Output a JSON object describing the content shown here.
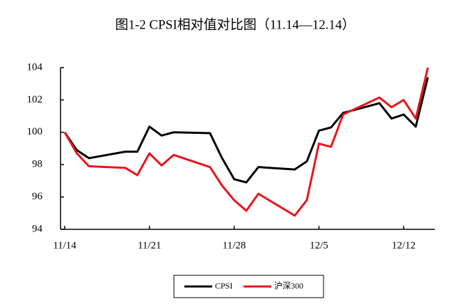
{
  "chart_data": {
    "type": "line",
    "title": "图1-2 CPSI相对值对比图（11.14—12.14）",
    "x": [
      "11/14",
      "11/15",
      "11/16",
      "11/19",
      "11/20",
      "11/21",
      "11/22",
      "11/23",
      "11/26",
      "11/27",
      "11/28",
      "11/29",
      "11/30",
      "12/3",
      "12/4",
      "12/5",
      "12/6",
      "12/7",
      "12/10",
      "12/11",
      "12/12",
      "12/13",
      "12/14"
    ],
    "series": [
      {
        "name": "CPSI",
        "color": "#000000",
        "values": [
          100,
          98.9,
          98.4,
          98.8,
          98.8,
          100.35,
          99.8,
          100.0,
          99.95,
          98.4,
          97.1,
          96.9,
          97.85,
          97.7,
          98.2,
          100.1,
          100.3,
          101.2,
          101.8,
          100.85,
          101.1,
          100.35,
          103.4
        ]
      },
      {
        "name": "沪深300",
        "color": "#e8141b",
        "values": [
          100,
          98.7,
          97.9,
          97.8,
          97.35,
          98.7,
          97.95,
          98.6,
          97.85,
          96.7,
          95.8,
          95.15,
          96.2,
          94.85,
          95.8,
          99.3,
          99.1,
          101.1,
          102.15,
          101.55,
          102.0,
          100.85,
          104.0
        ]
      }
    ],
    "xlim": [
      "11/14",
      "12/14"
    ],
    "xticks": [
      "11/14",
      "11/21",
      "11/28",
      "12/5",
      "12/12"
    ],
    "ylim": [
      94,
      104
    ],
    "yticks": [
      94,
      96,
      98,
      100,
      102,
      104
    ],
    "legend": "bottom"
  }
}
